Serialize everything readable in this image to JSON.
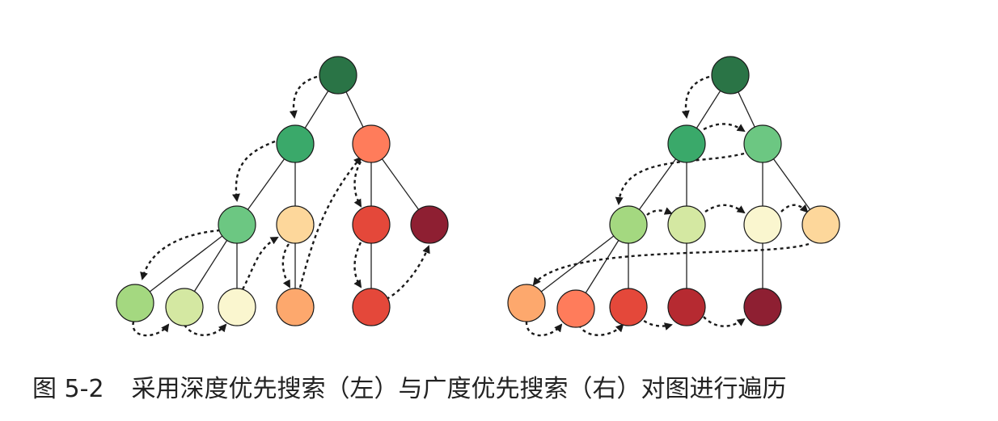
{
  "colors": {
    "edge": "#222222",
    "node_stroke": "#1a1a1a",
    "traversal_arrow": "#1a1a1a"
  },
  "caption": {
    "label": "图 5-2",
    "text": "采用深度优先搜索（左）与广度优先搜索（右）对图进行遍历"
  },
  "trees": [
    {
      "name": "dfs-tree",
      "nodes": [
        {
          "id": "root",
          "color": "#2a7446"
        },
        {
          "id": "a",
          "color": "#3aa96a"
        },
        {
          "id": "b",
          "color": "#ff7c5b"
        },
        {
          "id": "a1",
          "color": "#6cc782"
        },
        {
          "id": "a2",
          "color": "#fdd79b"
        },
        {
          "id": "b1",
          "color": "#e4483a"
        },
        {
          "id": "b2",
          "color": "#8e1f32"
        },
        {
          "id": "c1",
          "color": "#a4d880"
        },
        {
          "id": "c2",
          "color": "#d4e8a2"
        },
        {
          "id": "c3",
          "color": "#faf6cf"
        },
        {
          "id": "c4",
          "color": "#fda86d"
        },
        {
          "id": "c5",
          "color": "#e4483a"
        }
      ],
      "edges": [
        [
          "root",
          "a"
        ],
        [
          "root",
          "b"
        ],
        [
          "a",
          "a1"
        ],
        [
          "a",
          "a2"
        ],
        [
          "b",
          "b1"
        ],
        [
          "b",
          "b2"
        ],
        [
          "a1",
          "c1"
        ],
        [
          "a1",
          "c2"
        ],
        [
          "a1",
          "c3"
        ],
        [
          "a2",
          "c4"
        ],
        [
          "b1",
          "c5"
        ]
      ]
    },
    {
      "name": "bfs-tree",
      "nodes": [
        {
          "id": "root",
          "color": "#2a7446"
        },
        {
          "id": "a",
          "color": "#3aa96a"
        },
        {
          "id": "b",
          "color": "#6cc782"
        },
        {
          "id": "a1",
          "color": "#a4d880"
        },
        {
          "id": "a2",
          "color": "#d4e8a2"
        },
        {
          "id": "b1",
          "color": "#faf6cf"
        },
        {
          "id": "b2",
          "color": "#fdd79b"
        },
        {
          "id": "c1",
          "color": "#fda86d"
        },
        {
          "id": "c2",
          "color": "#ff7c5b"
        },
        {
          "id": "c3",
          "color": "#e4483a"
        },
        {
          "id": "c4",
          "color": "#b62a31"
        },
        {
          "id": "c5",
          "color": "#8e1f32"
        }
      ],
      "edges": [
        [
          "root",
          "a"
        ],
        [
          "root",
          "b"
        ],
        [
          "a",
          "a1"
        ],
        [
          "a",
          "a2"
        ],
        [
          "b",
          "b1"
        ],
        [
          "b",
          "b2"
        ],
        [
          "a1",
          "c1"
        ],
        [
          "a1",
          "c2"
        ],
        [
          "a1",
          "c3"
        ],
        [
          "a2",
          "c4"
        ],
        [
          "b1",
          "c5"
        ]
      ]
    }
  ]
}
